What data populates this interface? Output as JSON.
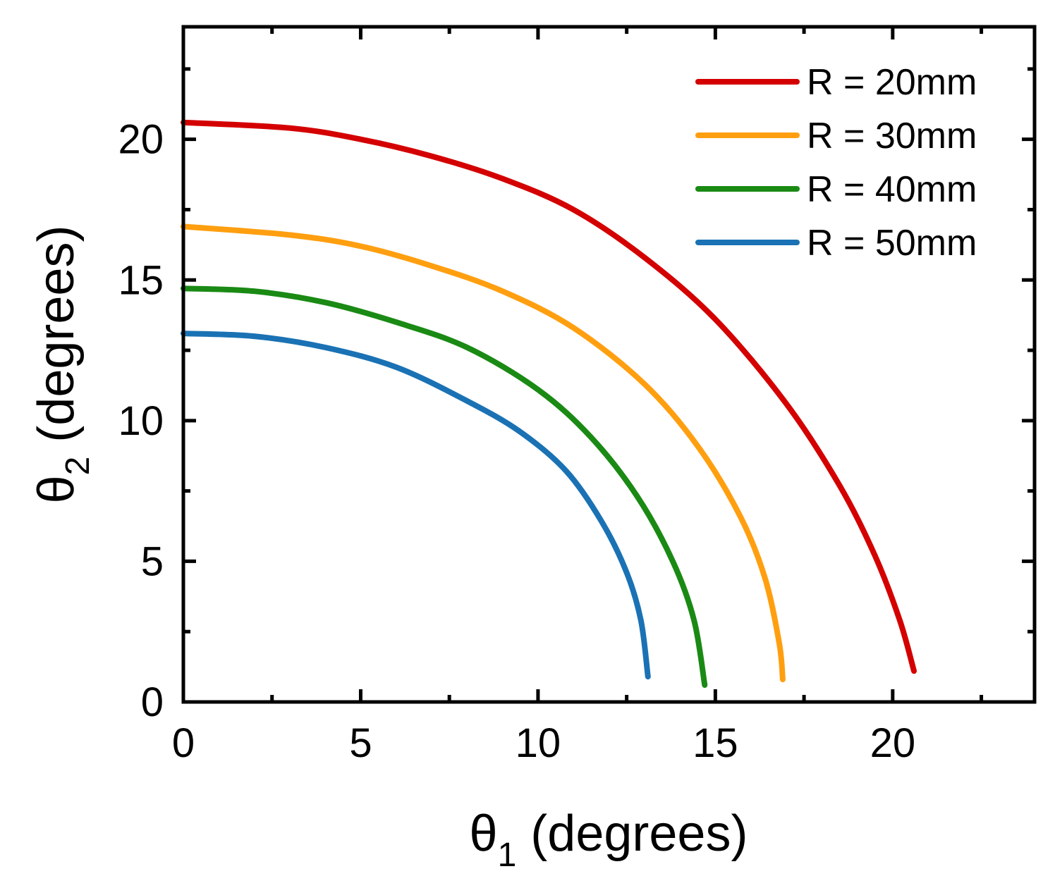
{
  "chart_data": {
    "type": "line",
    "xlabel": {
      "symbol": "θ",
      "subscript": "1",
      "rest": " (degrees)"
    },
    "ylabel": {
      "symbol": "θ",
      "subscript": "2",
      "rest": " (degrees)"
    },
    "xlim": [
      0,
      24
    ],
    "ylim": [
      0,
      24
    ],
    "x_ticks": [
      0,
      5,
      10,
      15,
      20
    ],
    "y_ticks": [
      0,
      5,
      10,
      15,
      20
    ],
    "x_tick_labels": [
      "0",
      "5",
      "10",
      "15",
      "20"
    ],
    "y_tick_labels": [
      "0",
      "5",
      "10",
      "15",
      "20"
    ],
    "grid": false,
    "legend_position": "top-right",
    "series": [
      {
        "name": "R = 20mm",
        "color": "#d40000",
        "x": [
          0,
          3,
          5,
          7,
          9,
          11,
          13,
          15,
          17,
          18.5,
          19.5,
          20.2,
          20.6
        ],
        "y": [
          20.6,
          20.4,
          20.0,
          19.4,
          18.6,
          17.5,
          15.8,
          13.6,
          10.6,
          7.7,
          5.2,
          2.9,
          1.1
        ]
      },
      {
        "name": "R = 30mm",
        "color": "#ff9f10",
        "x": [
          0,
          3,
          5,
          7,
          9,
          11,
          13,
          14.5,
          15.7,
          16.4,
          16.8,
          16.9
        ],
        "y": [
          16.9,
          16.6,
          16.2,
          15.5,
          14.6,
          13.3,
          11.3,
          9.1,
          6.6,
          4.4,
          2.1,
          0.8
        ]
      },
      {
        "name": "R = 40mm",
        "color": "#1a8a14",
        "x": [
          0,
          2,
          4,
          6,
          8,
          10,
          11.5,
          12.8,
          13.8,
          14.4,
          14.7
        ],
        "y": [
          14.7,
          14.6,
          14.2,
          13.5,
          12.6,
          11.1,
          9.4,
          7.3,
          5.0,
          2.9,
          0.6
        ]
      },
      {
        "name": "R = 50mm",
        "color": "#1a72b4",
        "x": [
          0,
          2,
          4,
          6,
          8,
          9.5,
          10.8,
          11.8,
          12.5,
          12.9,
          13.1
        ],
        "y": [
          13.1,
          13.0,
          12.6,
          11.9,
          10.7,
          9.6,
          8.2,
          6.4,
          4.6,
          2.9,
          0.9
        ]
      }
    ]
  }
}
